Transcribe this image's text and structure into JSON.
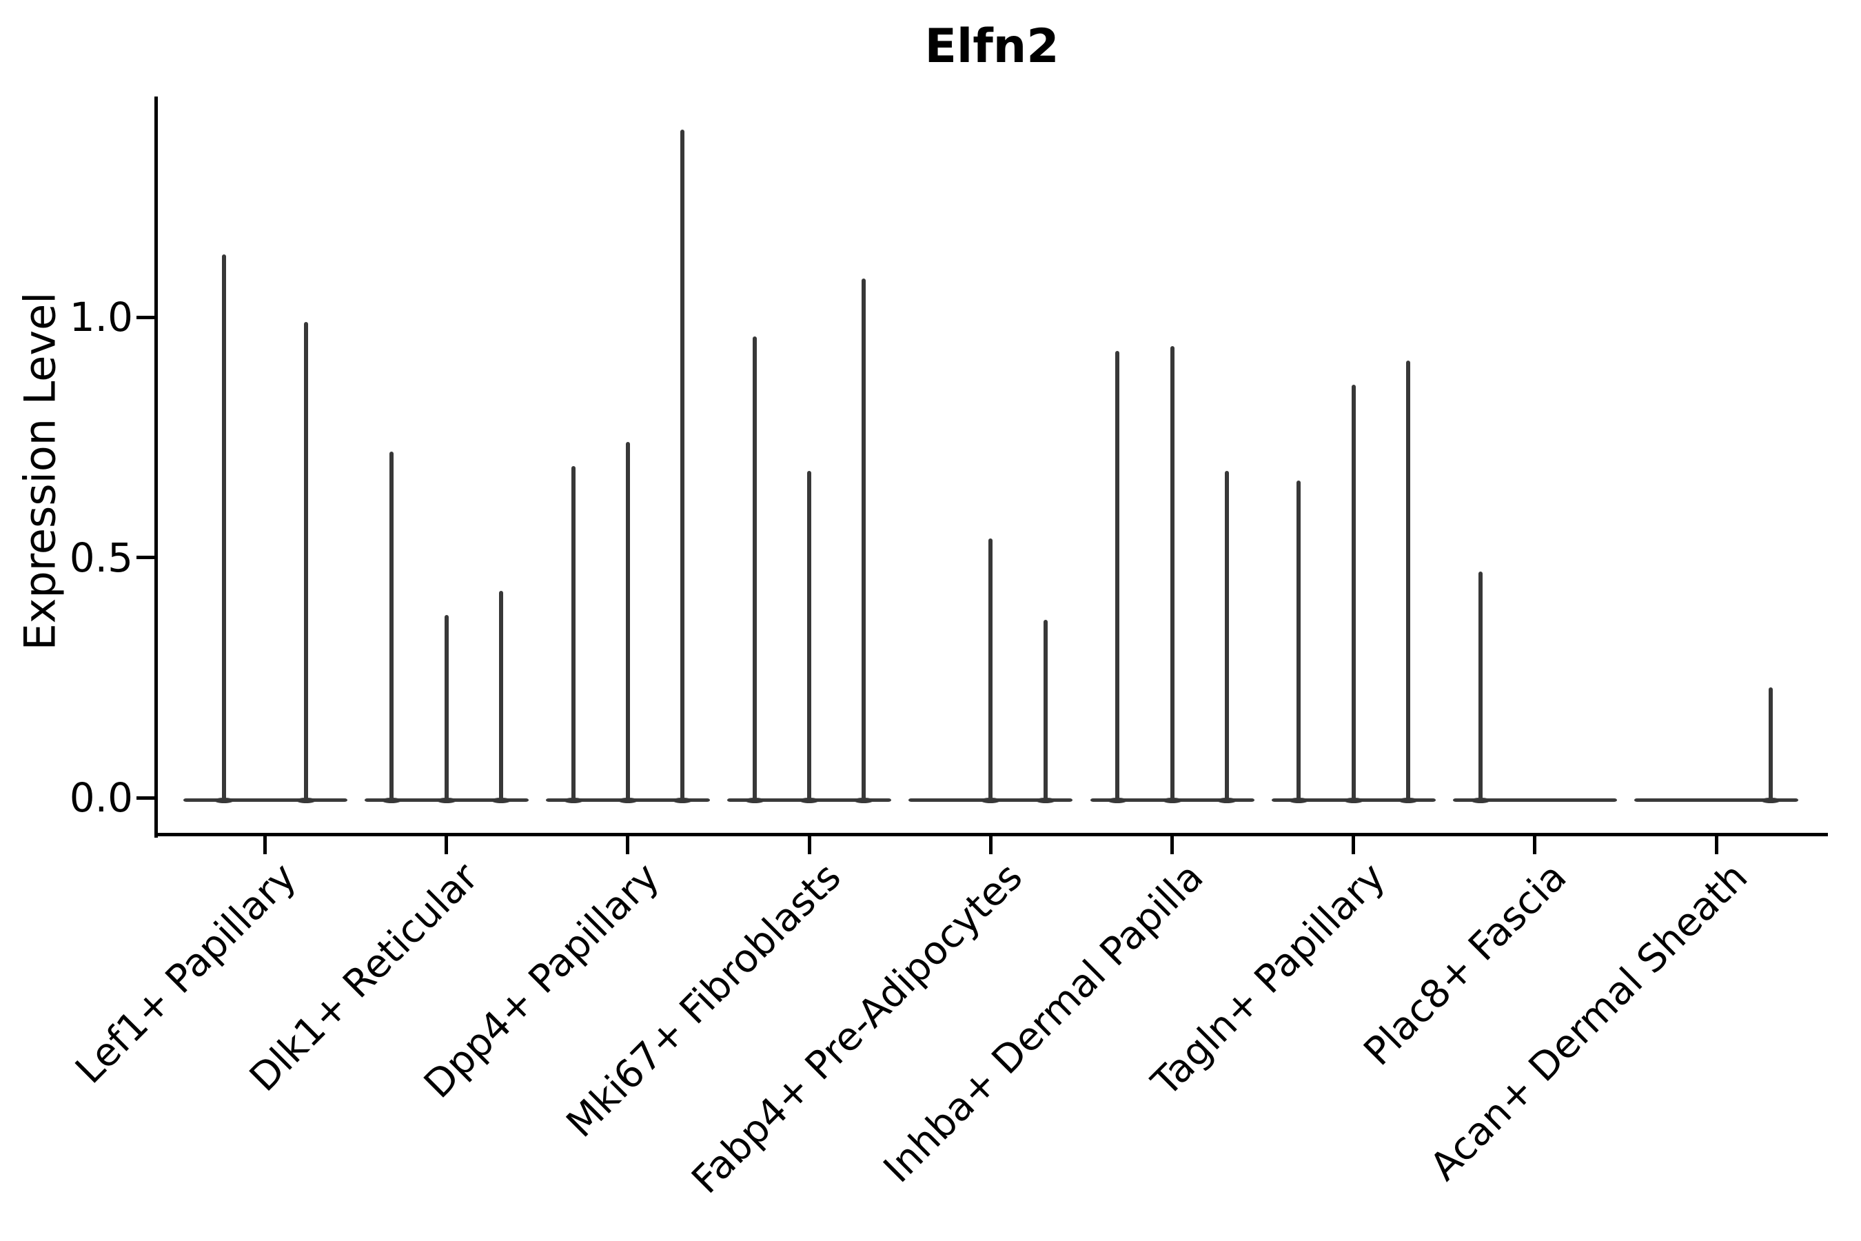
{
  "figure": {
    "title": "Elfn2",
    "ylabel": "Expression Level"
  },
  "chart_data": {
    "type": "violin",
    "title": "Elfn2",
    "xlabel": "",
    "ylabel": "Expression Level",
    "ytick_labels": [
      "0.0",
      "0.5",
      "1.0"
    ],
    "ytick_values": [
      0.0,
      0.5,
      1.0
    ],
    "ylim": [
      -0.075,
      1.46
    ],
    "grid": false,
    "legend": "none",
    "description": "Sparse single-cell violin plot: each category shows narrow violins collapsed to a flat base at 0 with thin spikes reaching the max expression of each sub-violin; 0 means a fully flat violin with no spike.",
    "categories": [
      "Lef1+ Papillary",
      "Dlk1+ Reticular",
      "Dpp4+ Papillary",
      "Mki67+ Fibroblasts",
      "Fabp4+ Pre-Adipocytes",
      "Inhba+ Dermal Papilla",
      "Tagln+ Papillary",
      "Plac8+ Fascia",
      "Acan+ Dermal Sheath"
    ],
    "groups": [
      {
        "label": "Lef1+ Papillary",
        "violin_peaks": [
          1.13,
          0.99
        ]
      },
      {
        "label": "Dlk1+ Reticular",
        "violin_peaks": [
          0.72,
          0.38,
          0.43
        ]
      },
      {
        "label": "Dpp4+ Papillary",
        "violin_peaks": [
          0.69,
          0.74,
          1.39
        ]
      },
      {
        "label": "Mki67+ Fibroblasts",
        "violin_peaks": [
          0.96,
          0.68,
          1.08
        ]
      },
      {
        "label": "Fabp4+ Pre-Adipocytes",
        "violin_peaks": [
          0.0,
          0.54,
          0.37
        ]
      },
      {
        "label": "Inhba+ Dermal Papilla",
        "violin_peaks": [
          0.93,
          0.94,
          0.68
        ]
      },
      {
        "label": "Tagln+ Papillary",
        "violin_peaks": [
          0.66,
          0.86,
          0.91
        ]
      },
      {
        "label": "Plac8+ Fascia",
        "violin_peaks": [
          0.47,
          0.0,
          0.0
        ]
      },
      {
        "label": "Acan+ Dermal Sheath",
        "violin_peaks": [
          0.0,
          0.0,
          0.23
        ]
      }
    ],
    "colors": {
      "violin": "#383838",
      "axis": "#000000",
      "text": "#000000",
      "background": "#ffffff"
    }
  }
}
